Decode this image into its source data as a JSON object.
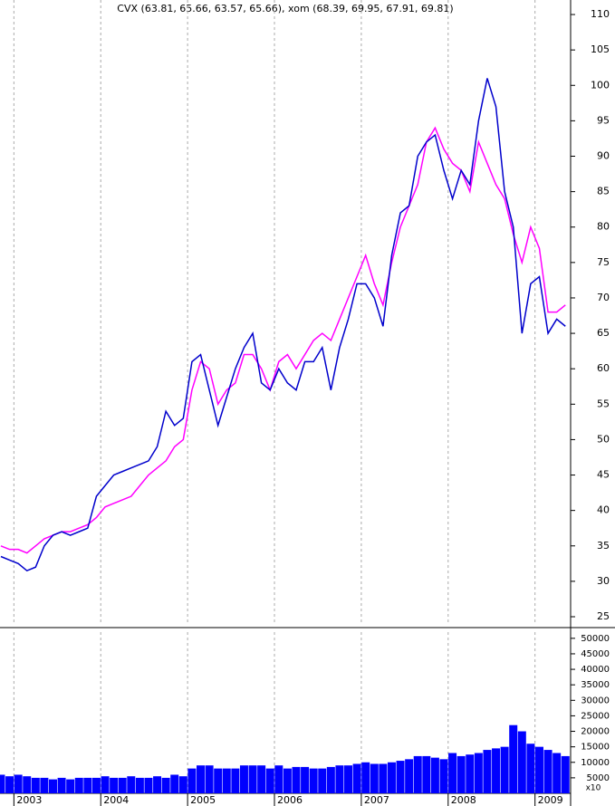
{
  "chart_data": [
    {
      "type": "line",
      "title": "CVX (63.81, 65.66, 63.57, 65.66), xom (68.39, 69.95, 67.91, 69.81)",
      "x": [
        2002.85,
        2002.95,
        2003.05,
        2003.15,
        2003.25,
        2003.35,
        2003.45,
        2003.55,
        2003.65,
        2003.75,
        2003.85,
        2003.95,
        2004.05,
        2004.15,
        2004.25,
        2004.35,
        2004.45,
        2004.55,
        2004.65,
        2004.75,
        2004.85,
        2004.95,
        2005.05,
        2005.15,
        2005.25,
        2005.35,
        2005.45,
        2005.55,
        2005.65,
        2005.75,
        2005.85,
        2005.95,
        2006.05,
        2006.15,
        2006.25,
        2006.35,
        2006.45,
        2006.55,
        2006.65,
        2006.75,
        2006.85,
        2006.95,
        2007.05,
        2007.15,
        2007.25,
        2007.35,
        2007.45,
        2007.55,
        2007.65,
        2007.75,
        2007.85,
        2007.95,
        2008.05,
        2008.15,
        2008.25,
        2008.35,
        2008.45,
        2008.55,
        2008.65,
        2008.75,
        2008.85,
        2008.95,
        2009.05,
        2009.15,
        2009.25,
        2009.35
      ],
      "series": [
        {
          "color": "#ff00ff",
          "values": [
            35,
            34.5,
            34.5,
            34,
            35,
            36,
            36.5,
            37,
            37,
            37.5,
            38,
            39,
            40.5,
            41,
            41.5,
            42,
            43.5,
            45,
            46,
            47,
            49,
            50,
            57,
            61,
            60,
            55,
            57,
            58,
            62,
            62,
            60,
            57,
            61,
            62,
            60,
            62,
            64,
            65,
            64,
            67,
            70,
            73,
            76,
            72,
            69,
            75,
            80,
            83,
            86,
            92,
            94,
            91,
            89,
            88,
            85,
            92,
            89,
            86,
            84,
            79,
            75,
            80,
            77,
            68,
            68,
            69
          ]
        },
        {
          "color": "#0000cc",
          "values": [
            33.5,
            33,
            32.5,
            31.5,
            32,
            35,
            36.5,
            37,
            36.5,
            37,
            37.5,
            42,
            43.5,
            45,
            45.5,
            46,
            46.5,
            47,
            49,
            54,
            52,
            53,
            61,
            62,
            57,
            52,
            56,
            60,
            63,
            65,
            58,
            57,
            60,
            58,
            57,
            61,
            61,
            63,
            57,
            63,
            67,
            72,
            72,
            70,
            66,
            76,
            82,
            83,
            90,
            92,
            93,
            88,
            84,
            88,
            86,
            95,
            101,
            97,
            85,
            80,
            65,
            72,
            73,
            65,
            67,
            66
          ]
        }
      ],
      "xlim": [
        2002.84,
        2009.41
      ],
      "xticks": [
        2003,
        2004,
        2005,
        2006,
        2007,
        2008,
        2009
      ],
      "ylim": [
        23.85,
        112.05
      ],
      "yticks": [
        25,
        30,
        35,
        40,
        45,
        50,
        55,
        60,
        65,
        70,
        75,
        80,
        85,
        90,
        95,
        100,
        105,
        110
      ],
      "grid": true
    },
    {
      "type": "bar",
      "unit_label": "x10",
      "x": [
        2002.85,
        2002.95,
        2003.05,
        2003.15,
        2003.25,
        2003.35,
        2003.45,
        2003.55,
        2003.65,
        2003.75,
        2003.85,
        2003.95,
        2004.05,
        2004.15,
        2004.25,
        2004.35,
        2004.45,
        2004.55,
        2004.65,
        2004.75,
        2004.85,
        2004.95,
        2005.05,
        2005.15,
        2005.25,
        2005.35,
        2005.45,
        2005.55,
        2005.65,
        2005.75,
        2005.85,
        2005.95,
        2006.05,
        2006.15,
        2006.25,
        2006.35,
        2006.45,
        2006.55,
        2006.65,
        2006.75,
        2006.85,
        2006.95,
        2007.05,
        2007.15,
        2007.25,
        2007.35,
        2007.45,
        2007.55,
        2007.65,
        2007.75,
        2007.85,
        2007.95,
        2008.05,
        2008.15,
        2008.25,
        2008.35,
        2008.45,
        2008.55,
        2008.65,
        2008.75,
        2008.85,
        2008.95,
        2009.05,
        2009.15,
        2009.25,
        2009.35
      ],
      "values": [
        6000,
        5500,
        6000,
        5500,
        5000,
        5000,
        4500,
        5000,
        4500,
        5000,
        5000,
        5000,
        5500,
        5000,
        5000,
        5500,
        5000,
        5000,
        5500,
        5000,
        6000,
        5500,
        8000,
        9000,
        9000,
        8000,
        8000,
        8000,
        9000,
        9000,
        9000,
        8000,
        9000,
        8000,
        8500,
        8500,
        8000,
        8000,
        8500,
        9000,
        9000,
        9500,
        10000,
        9500,
        9500,
        10000,
        10500,
        11000,
        12000,
        12000,
        11500,
        11000,
        13000,
        12000,
        12500,
        13000,
        14000,
        14500,
        15000,
        22000,
        20000,
        16000,
        15000,
        14000,
        13000,
        12000
      ],
      "color": "#0000ff",
      "xlim": [
        2002.84,
        2009.41
      ],
      "xticks": [
        2003,
        2004,
        2005,
        2006,
        2007,
        2008,
        2009
      ],
      "ylim": [
        0,
        52000
      ],
      "yticks": [
        5000,
        10000,
        15000,
        20000,
        25000,
        30000,
        35000,
        40000,
        45000,
        50000
      ],
      "grid": true
    }
  ]
}
